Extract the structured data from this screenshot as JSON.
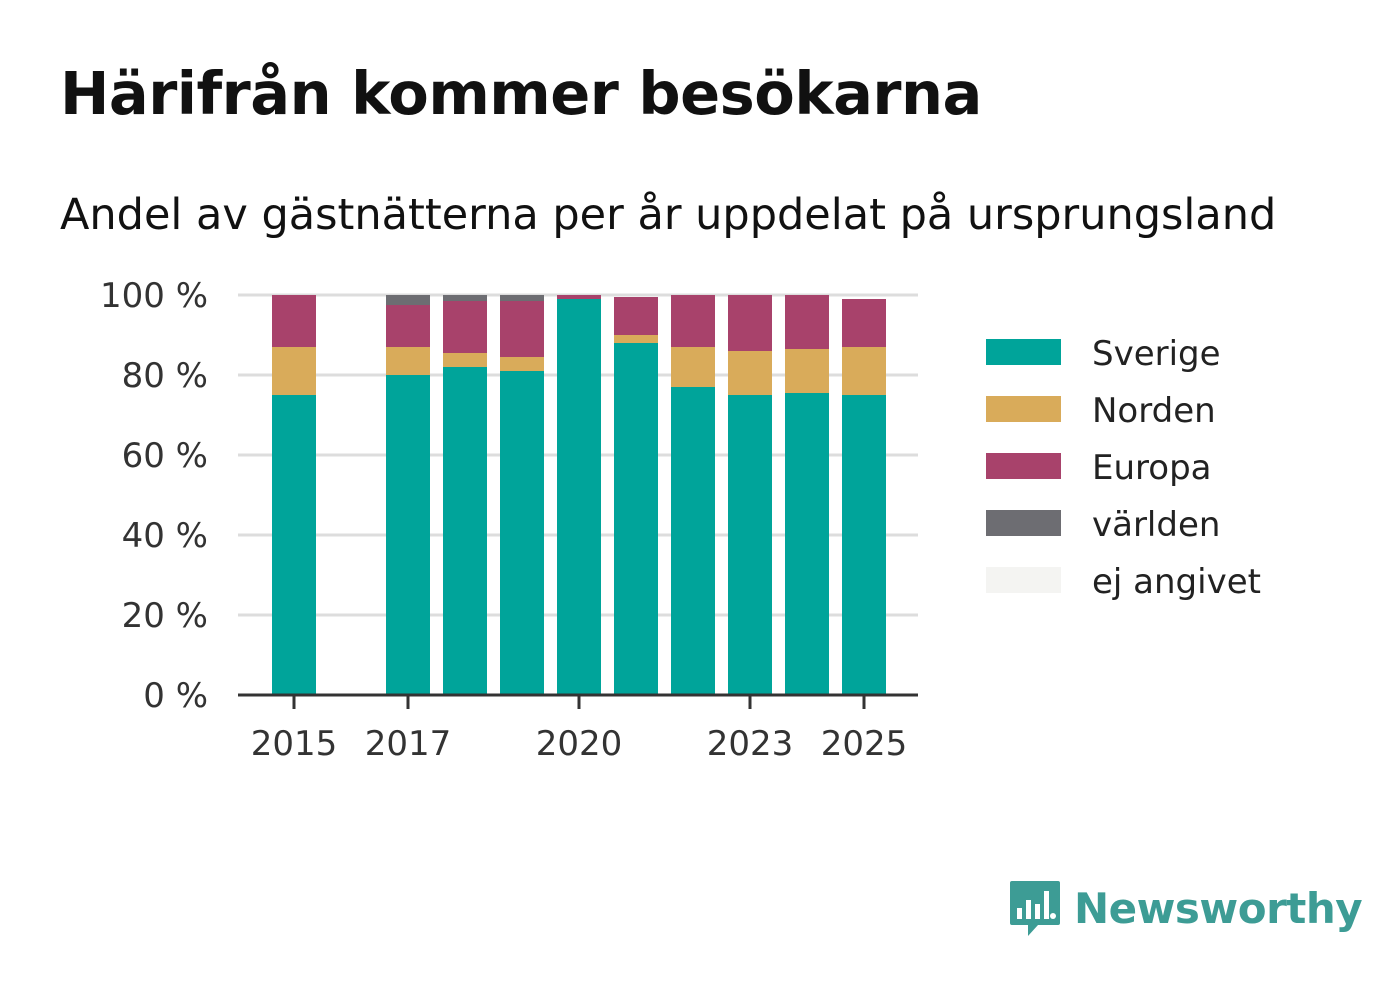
{
  "title": "Härifrån kommer besökarna",
  "subtitle": "Andel av gästnätterna per år uppdelat på ursprungsland",
  "brand": {
    "name": "Newsworthy",
    "icon": "newsworthy-logo-icon",
    "color": "#3d9c95"
  },
  "chart_data": {
    "type": "bar",
    "stacked": true,
    "categories": [
      2015,
      2016,
      2017,
      2018,
      2019,
      2020,
      2021,
      2022,
      2023,
      2024,
      2025
    ],
    "x_ticks": [
      "2015",
      "2017",
      "2020",
      "2023",
      "2025"
    ],
    "y_ticks": [
      "0 %",
      "20 %",
      "40 %",
      "60 %",
      "80 %",
      "100 %"
    ],
    "ylim": [
      0,
      100
    ],
    "grid": true,
    "legend_position": "right",
    "series": [
      {
        "name": "Sverige",
        "color": "#00a49a",
        "values": [
          75,
          null,
          80,
          82,
          81,
          99,
          88,
          77,
          75,
          75.5,
          75
        ]
      },
      {
        "name": "Norden",
        "color": "#d9ab5a",
        "values": [
          12,
          null,
          7,
          3.5,
          3.5,
          0,
          2,
          10,
          11,
          11,
          12
        ]
      },
      {
        "name": "Europa",
        "color": "#a8426b",
        "values": [
          13,
          null,
          10.5,
          13,
          14,
          1,
          9.5,
          13,
          14,
          13.5,
          12
        ]
      },
      {
        "name": "världen",
        "color": "#6d6d72",
        "values": [
          0,
          null,
          2.5,
          1.5,
          1.5,
          0,
          0,
          0,
          0,
          0,
          0
        ]
      },
      {
        "name": "ej angivet",
        "color": "#f4f4f2",
        "values": [
          0,
          null,
          0,
          0,
          0,
          0,
          0,
          0,
          0,
          0,
          0
        ]
      }
    ]
  }
}
